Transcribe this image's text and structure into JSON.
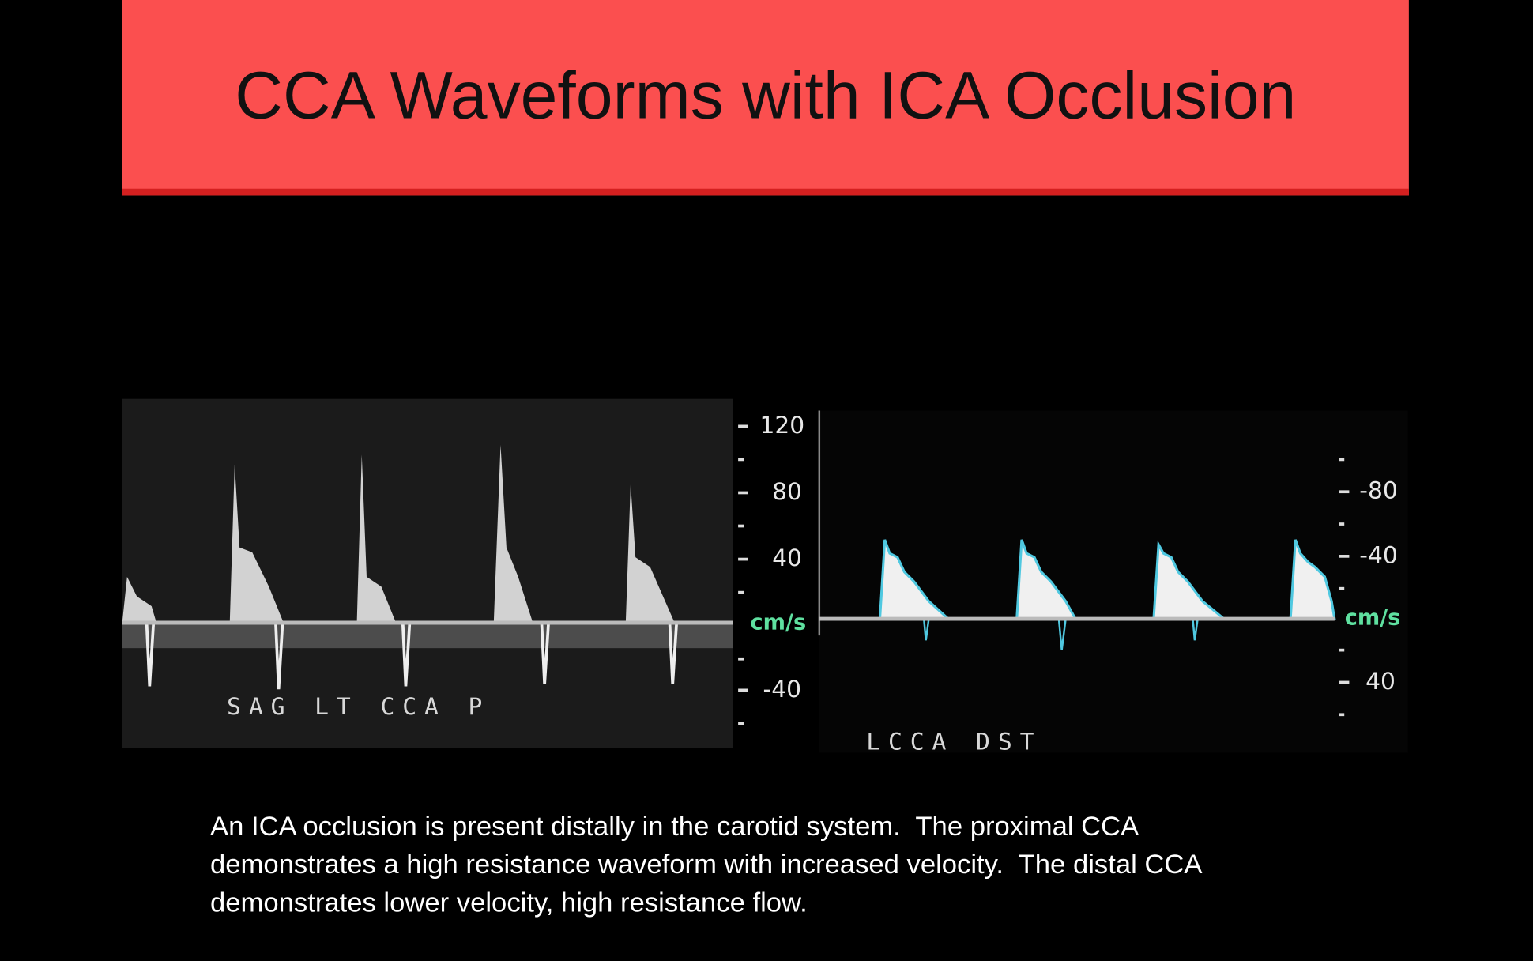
{
  "header": {
    "title": "CCA Waveforms with ICA Occlusion"
  },
  "figures": [
    {
      "label": "SAG LT CCA P",
      "scale_labels": [
        "120",
        "80",
        "40",
        "cm/s",
        "-40"
      ]
    },
    {
      "label": "LCCA DST",
      "scale_labels": [
        "-80",
        "-40",
        "cm/s",
        "40"
      ]
    }
  ],
  "caption": [
    "An ICA occlusion is present distally in the carotid system.  The proximal CCA",
    "demonstrates a high resistance waveform with increased velocity.  The distal CCA",
    "demonstrates lower velocity, high resistance flow."
  ]
}
